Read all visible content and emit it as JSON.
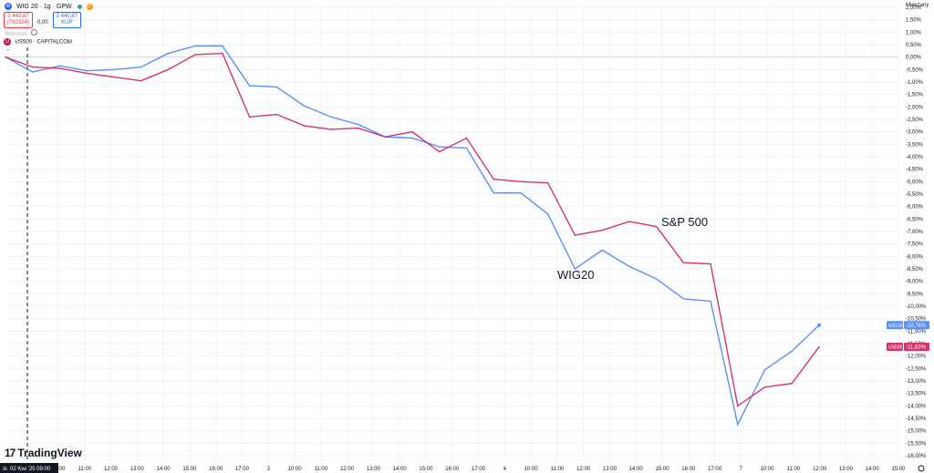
{
  "header": {
    "symbol": "WIG 20 · 1g · GPW",
    "price_sell": "2 440,87",
    "sell_label": "(792324)",
    "spread": "0,00",
    "price_buy": "2 440,87",
    "buy_label": "KUP",
    "volume_label": "Wolumen",
    "compare_symbol": "US500 · CAPITALCOM",
    "blue_icon_label": "W",
    "red_icon_label": "U"
  },
  "axis_title": "Mieszany",
  "logo_text": "TradingView",
  "crosshair_date": "śr. 02 Kwi '25  09:00",
  "annotations": {
    "sp500": "S&P 500",
    "wig20": "WIG20"
  },
  "colors": {
    "wig20": "#5b8ff9",
    "sp500": "#d6336c",
    "grid": "#f0f3fa"
  },
  "chart_data": {
    "type": "line",
    "ylim": [
      -16.0,
      2.0
    ],
    "yticks": [
      "2,00%",
      "1,50%",
      "1,00%",
      "0,50%",
      "0,00%",
      "-0,50%",
      "-1,00%",
      "-1,50%",
      "-2,00%",
      "-2,50%",
      "-3,00%",
      "-3,50%",
      "-4,00%",
      "-4,50%",
      "-5,00%",
      "-5,50%",
      "-6,00%",
      "-6,50%",
      "-7,00%",
      "-7,50%",
      "-8,00%",
      "-8,50%",
      "-9,00%",
      "-9,50%",
      "-10,00%",
      "-10,50%",
      "-11,00%",
      "-11,50%",
      "-12,00%",
      "-12,50%",
      "-13,00%",
      "-13,50%",
      "-14,00%",
      "-14,50%",
      "-15,00%",
      "-15,50%",
      "-16,00%"
    ],
    "x_tick_labels": [
      "10:00",
      "11:00",
      "12:00",
      "13:00",
      "14:00",
      "15:00",
      "16:00",
      "17:00",
      "3",
      "10:00",
      "11:00",
      "12:00",
      "13:00",
      "14:00",
      "15:00",
      "16:00",
      "17:00",
      "4",
      "10:00",
      "11:00",
      "12:00",
      "13:00",
      "14:00",
      "15:00",
      "16:00",
      "17:00",
      "7",
      "10:00",
      "11:00",
      "12:00",
      "13:00",
      "14:00",
      "15:00"
    ],
    "series": [
      {
        "name": "WIG20",
        "last_label": "-10,76%",
        "values": [
          0.0,
          -0.6,
          -0.35,
          -0.55,
          -0.5,
          -0.4,
          0.15,
          0.45,
          0.45,
          -1.15,
          -1.2,
          -1.95,
          -2.4,
          -2.7,
          -3.2,
          -3.25,
          -3.6,
          -3.65,
          -5.45,
          -5.45,
          -6.3,
          -8.5,
          -7.75,
          -8.4,
          -8.9,
          -9.7,
          -9.8,
          -14.75,
          -12.55,
          -11.8,
          -10.76
        ]
      },
      {
        "name": "S&P 500",
        "last_label": "-11,63%",
        "values": [
          0.0,
          -0.4,
          -0.45,
          -0.65,
          -0.8,
          -0.95,
          -0.5,
          0.1,
          0.15,
          -2.4,
          -2.3,
          -2.75,
          -2.9,
          -2.85,
          -3.2,
          -3.0,
          -3.8,
          -3.25,
          -4.9,
          -5.0,
          -5.05,
          -7.15,
          -6.95,
          -6.6,
          -6.8,
          -8.25,
          -8.3,
          -14.0,
          -13.25,
          -13.1,
          -11.63
        ]
      }
    ]
  }
}
